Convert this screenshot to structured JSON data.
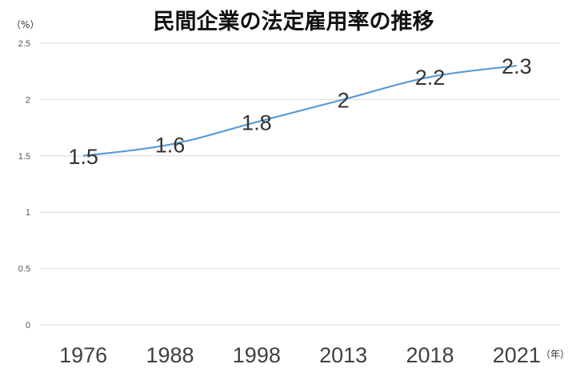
{
  "chart_data": {
    "type": "line",
    "title": "民間企業の法定雇用率の推移",
    "y_unit": "（%）",
    "x_unit": "（年）",
    "categories": [
      "1976",
      "1988",
      "1998",
      "2013",
      "2018",
      "2021"
    ],
    "values": [
      1.5,
      1.6,
      1.8,
      2,
      2.2,
      2.3
    ],
    "data_labels": [
      "1.5",
      "1.6",
      "1.8",
      "2",
      "2.2",
      "2.3"
    ],
    "ylim": [
      0,
      2.5
    ],
    "yticks": [
      "0",
      "0.5",
      "1",
      "1.5",
      "2",
      "2.5"
    ],
    "grid": true,
    "smooth": true,
    "line_color": "#5b9bd5"
  }
}
